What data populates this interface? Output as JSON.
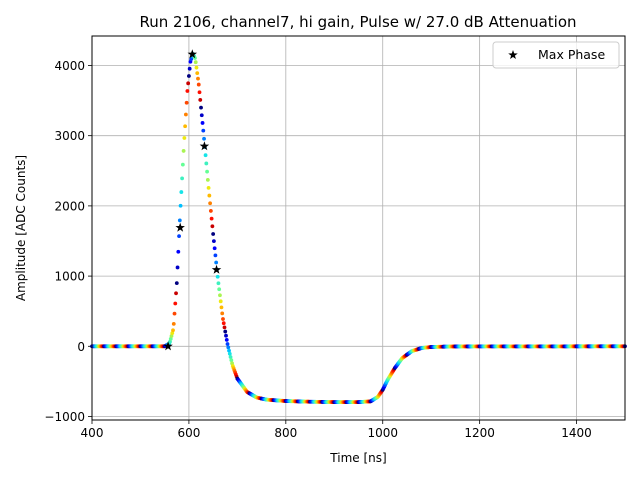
{
  "chart_data": {
    "type": "scatter",
    "title": "Run 2106, channel7, hi gain, Pulse w/ 27.0 dB Attenuation",
    "xlabel": "Time [ns]",
    "ylabel": "Amplitude [ADC Counts]",
    "xlim": [
      400,
      1500
    ],
    "ylim": [
      -1050,
      4420
    ],
    "xticks": [
      400,
      600,
      800,
      1000,
      1200,
      1400
    ],
    "yticks": [
      -1000,
      0,
      1000,
      2000,
      3000,
      4000
    ],
    "xtick_labels": [
      "400",
      "600",
      "800",
      "1000",
      "1200",
      "1400"
    ],
    "ytick_labels": [
      "−1000",
      "0",
      "1000",
      "2000",
      "3000",
      "4000"
    ],
    "grid": true,
    "legend": {
      "position": "top-right",
      "entries": [
        "Max Phase"
      ]
    },
    "colormap": "jet",
    "pulse_curve": [
      [
        400,
        0
      ],
      [
        550,
        0
      ],
      [
        560,
        40
      ],
      [
        568,
        250
      ],
      [
        575,
        900
      ],
      [
        582,
        1900
      ],
      [
        590,
        2900
      ],
      [
        597,
        3650
      ],
      [
        603,
        4050
      ],
      [
        608,
        4170
      ],
      [
        613,
        4100
      ],
      [
        620,
        3750
      ],
      [
        630,
        3050
      ],
      [
        640,
        2300
      ],
      [
        650,
        1600
      ],
      [
        660,
        950
      ],
      [
        670,
        400
      ],
      [
        680,
        20
      ],
      [
        690,
        -270
      ],
      [
        700,
        -460
      ],
      [
        720,
        -650
      ],
      [
        740,
        -730
      ],
      [
        760,
        -760
      ],
      [
        800,
        -780
      ],
      [
        850,
        -790
      ],
      [
        900,
        -795
      ],
      [
        950,
        -795
      ],
      [
        975,
        -785
      ],
      [
        990,
        -720
      ],
      [
        1000,
        -620
      ],
      [
        1010,
        -480
      ],
      [
        1025,
        -310
      ],
      [
        1040,
        -170
      ],
      [
        1060,
        -70
      ],
      [
        1080,
        -25
      ],
      [
        1100,
        -10
      ],
      [
        1150,
        -2
      ],
      [
        1500,
        0
      ]
    ],
    "series": [
      {
        "name": "Max Phase",
        "marker": "star",
        "color": "#000000",
        "points": [
          [
            557,
            0
          ],
          [
            582,
            1690
          ],
          [
            607,
            4160
          ],
          [
            632,
            2850
          ],
          [
            657,
            1090
          ]
        ]
      }
    ]
  }
}
